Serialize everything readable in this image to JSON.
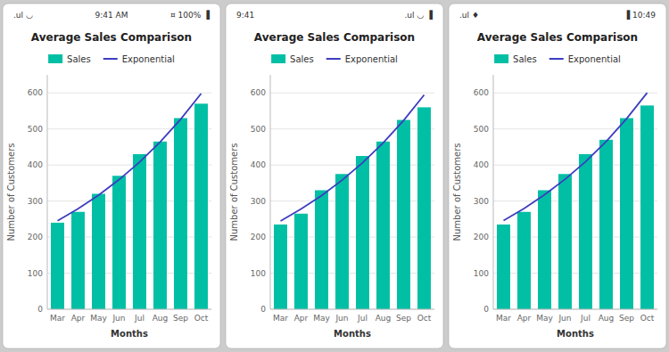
{
  "chart_data": [
    {
      "type": "bar",
      "title": "Average Sales Comparison",
      "xlabel": "Months",
      "ylabel": "Number of Customers",
      "annotations": [
        ".ul ◡",
        "9:41 AM",
        "¤ 100% ▐"
      ],
      "categories": [
        "Mar",
        "Apr",
        "May",
        "Jun",
        "Jul",
        "Aug",
        "Sep",
        "Oct"
      ],
      "series": [
        {
          "name": "Sales",
          "type": "bar",
          "color": "#00BFA5",
          "values": [
            240,
            270,
            320,
            370,
            430,
            465,
            530,
            570
          ]
        },
        {
          "name": "Exponential",
          "type": "line",
          "color": "#3D3DBF",
          "values": [
            245.3,
            278.6,
            316.4,
            359.4,
            408.2,
            463.7,
            526.7,
            598.2
          ]
        }
      ],
      "ylim": [
        0,
        650
      ],
      "yticks": [
        0,
        100,
        200,
        300,
        400,
        500,
        600
      ],
      "grid": true
    },
    {
      "type": "bar",
      "title": "Average Sales Comparison",
      "xlabel": "Months",
      "ylabel": "Number of Customers",
      "annotations": [
        "9:41",
        ".ul ◡ ▐"
      ],
      "categories": [
        "Mar",
        "Apr",
        "May",
        "Jun",
        "Jul",
        "Aug",
        "Sep",
        "Oct"
      ],
      "series": [
        {
          "name": "Sales",
          "type": "bar",
          "color": "#00BFA5",
          "values": [
            235,
            265,
            330,
            375,
            425,
            465,
            525,
            560
          ]
        },
        {
          "name": "Exponential",
          "type": "line",
          "color": "#3D3DBF",
          "values": [
            244.7,
            277.8,
            315.3,
            358.0,
            406.4,
            461.3,
            523.7,
            594.4
          ]
        }
      ],
      "ylim": [
        0,
        650
      ],
      "yticks": [
        0,
        100,
        200,
        300,
        400,
        500,
        600
      ],
      "grid": true
    },
    {
      "type": "bar",
      "title": "Average Sales Comparison",
      "xlabel": "Months",
      "ylabel": "Number of Customers",
      "annotations": [
        ".ul ♦",
        "▐ 10:49"
      ],
      "categories": [
        "Mar",
        "Apr",
        "May",
        "Jun",
        "Jul",
        "Aug",
        "Sep",
        "Oct"
      ],
      "series": [
        {
          "name": "Sales",
          "type": "bar",
          "color": "#00BFA5",
          "values": [
            235,
            270,
            330,
            375,
            430,
            470,
            530,
            565
          ]
        },
        {
          "name": "Exponential",
          "type": "line",
          "color": "#3D3DBF",
          "values": [
            245.9,
            279.4,
            317.4,
            360.5,
            409.5,
            465.2,
            528.5,
            600.4
          ]
        }
      ],
      "ylim": [
        0,
        650
      ],
      "yticks": [
        0,
        100,
        200,
        300,
        400,
        500,
        600
      ],
      "grid": true
    }
  ]
}
